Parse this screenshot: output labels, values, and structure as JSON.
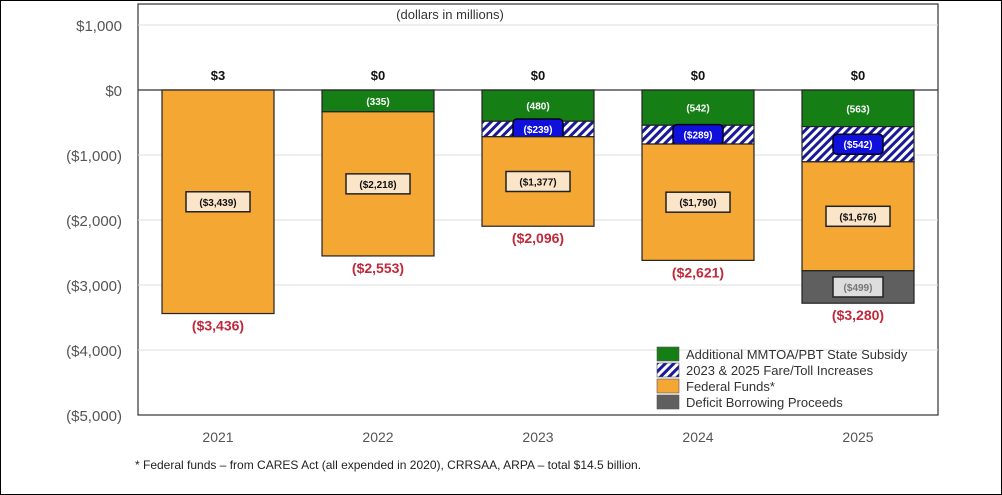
{
  "chart_data": {
    "type": "bar",
    "stacked": true,
    "subtitle": "(dollars in millions)",
    "categories": [
      "2021",
      "2022",
      "2023",
      "2024",
      "2025"
    ],
    "ylim": [
      -5000,
      1000
    ],
    "yticks": [
      1000,
      0,
      -1000,
      -2000,
      -3000,
      -4000,
      -5000
    ],
    "ytick_labels": [
      "$1,000",
      "$0",
      "($1,000)",
      "($2,000)",
      "($3,000)",
      "($4,000)",
      "($5,000)"
    ],
    "grid": true,
    "legend_position": "bottom-right",
    "series": [
      {
        "name": "Additional MMTOA/PBT State Subsidy",
        "color": "#157f15",
        "values": [
          0,
          -335,
          -480,
          -542,
          -563
        ],
        "labels": [
          "",
          "(335)",
          "(480)",
          "(542)",
          "(563)"
        ]
      },
      {
        "name": "2023 & 2025 Fare/Toll Increases",
        "color": "#1a1acc",
        "pattern": "hatch",
        "values": [
          0,
          0,
          -239,
          -289,
          -542
        ],
        "labels": [
          "",
          "",
          "($239)",
          "($289)",
          "($542)"
        ]
      },
      {
        "name": "Federal Funds*",
        "color": "#f5a733",
        "values": [
          -3439,
          -2218,
          -1377,
          -1790,
          -1676
        ],
        "labels": [
          "($3,439)",
          "($2,218)",
          "($1,377)",
          "($1,790)",
          "($1,676)"
        ]
      },
      {
        "name": "Deficit Borrowing Proceeds",
        "color": "#5f5f5f",
        "values": [
          0,
          0,
          0,
          0,
          -499
        ],
        "labels": [
          "",
          "",
          "",
          "",
          "($499)"
        ]
      }
    ],
    "top_labels": [
      "$3",
      "$0",
      "$0",
      "$0",
      "$0"
    ],
    "total_values": [
      -3436,
      -2553,
      -2096,
      -2621,
      -3280
    ],
    "total_labels": [
      "($3,436)",
      "($2,553)",
      "($2,096)",
      "($2,621)",
      "($3,280)"
    ]
  },
  "footnote": "* Federal funds – from CARES Act (all expended in 2020), CRRSAA, ARPA – total $14.5 billion."
}
